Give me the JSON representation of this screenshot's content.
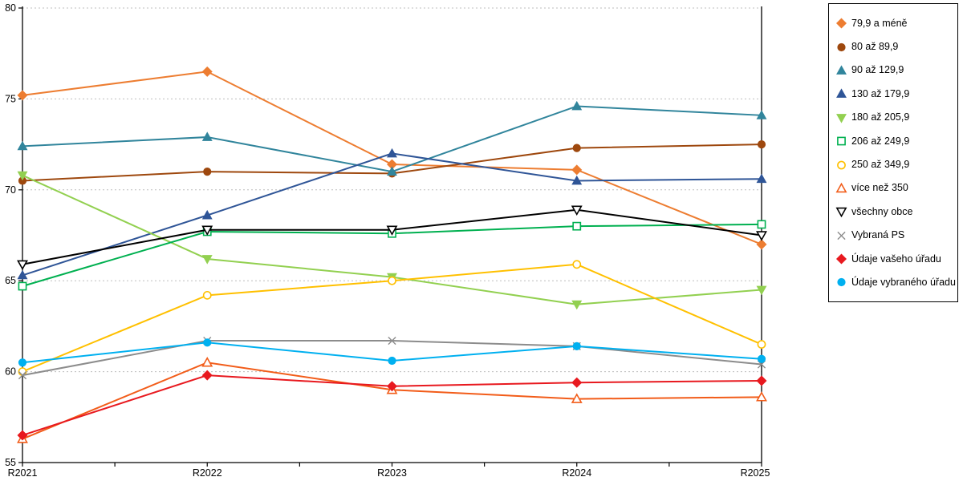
{
  "chart_data": {
    "type": "line",
    "title": "",
    "xlabel": "",
    "ylabel": "",
    "x_categories": [
      "R2021",
      "R2022",
      "R2023",
      "R2024",
      "R2025"
    ],
    "y_ticks": [
      55,
      60,
      65,
      70,
      75,
      80
    ],
    "ylim": [
      55,
      80
    ],
    "grid": "horizontal-dashed",
    "grid_color": "#bdbdbd",
    "axis_color": "#000000",
    "legend_position": "right-outside",
    "series": [
      {
        "name": "79,9 a méně",
        "color": "#ED7D31",
        "marker": "diamond",
        "filled": true,
        "values": [
          75.2,
          76.5,
          71.4,
          71.1,
          67.0
        ]
      },
      {
        "name": "80 až 89,9",
        "color": "#9E480E",
        "marker": "circle",
        "filled": true,
        "values": [
          70.5,
          71.0,
          70.9,
          72.3,
          72.5
        ]
      },
      {
        "name": "90 až 129,9",
        "color": "#31859C",
        "marker": "triangle-up",
        "filled": true,
        "values": [
          72.4,
          72.9,
          71.0,
          74.6,
          74.1
        ]
      },
      {
        "name": "130 až 179,9",
        "color": "#2F5597",
        "marker": "triangle-up",
        "filled": true,
        "values": [
          65.3,
          68.6,
          72.0,
          70.5,
          70.6
        ]
      },
      {
        "name": "180 až 205,9",
        "color": "#92D050",
        "marker": "triangle-down",
        "filled": true,
        "values": [
          70.8,
          66.2,
          65.2,
          63.7,
          64.5
        ]
      },
      {
        "name": "206 až 249,9",
        "color": "#00B050",
        "marker": "square",
        "filled": false,
        "values": [
          64.7,
          67.7,
          67.6,
          68.0,
          68.1
        ]
      },
      {
        "name": "250 až 349,9",
        "color": "#FFC000",
        "marker": "circle",
        "filled": false,
        "values": [
          60.0,
          64.2,
          65.0,
          65.9,
          61.5
        ]
      },
      {
        "name": "více než 350",
        "color": "#F25C19",
        "marker": "triangle-up",
        "filled": false,
        "values": [
          56.3,
          60.5,
          59.0,
          58.5,
          58.6
        ]
      },
      {
        "name": "všechny obce",
        "color": "#000000",
        "marker": "triangle-down",
        "filled": false,
        "values": [
          65.9,
          67.8,
          67.8,
          68.9,
          67.5
        ]
      },
      {
        "name": "Vybraná PS",
        "color": "#8C8C8C",
        "marker": "x",
        "filled": false,
        "values": [
          59.8,
          61.7,
          61.7,
          61.4,
          60.4
        ]
      },
      {
        "name": "Údaje vašeho úřadu",
        "color": "#E8191F",
        "marker": "diamond",
        "filled": true,
        "values": [
          56.5,
          59.8,
          59.2,
          59.4,
          59.5
        ]
      },
      {
        "name": "Údaje vybraného úřadu",
        "color": "#00B0F0",
        "marker": "circle",
        "filled": true,
        "values": [
          60.5,
          61.6,
          60.6,
          61.4,
          60.7
        ]
      }
    ]
  }
}
